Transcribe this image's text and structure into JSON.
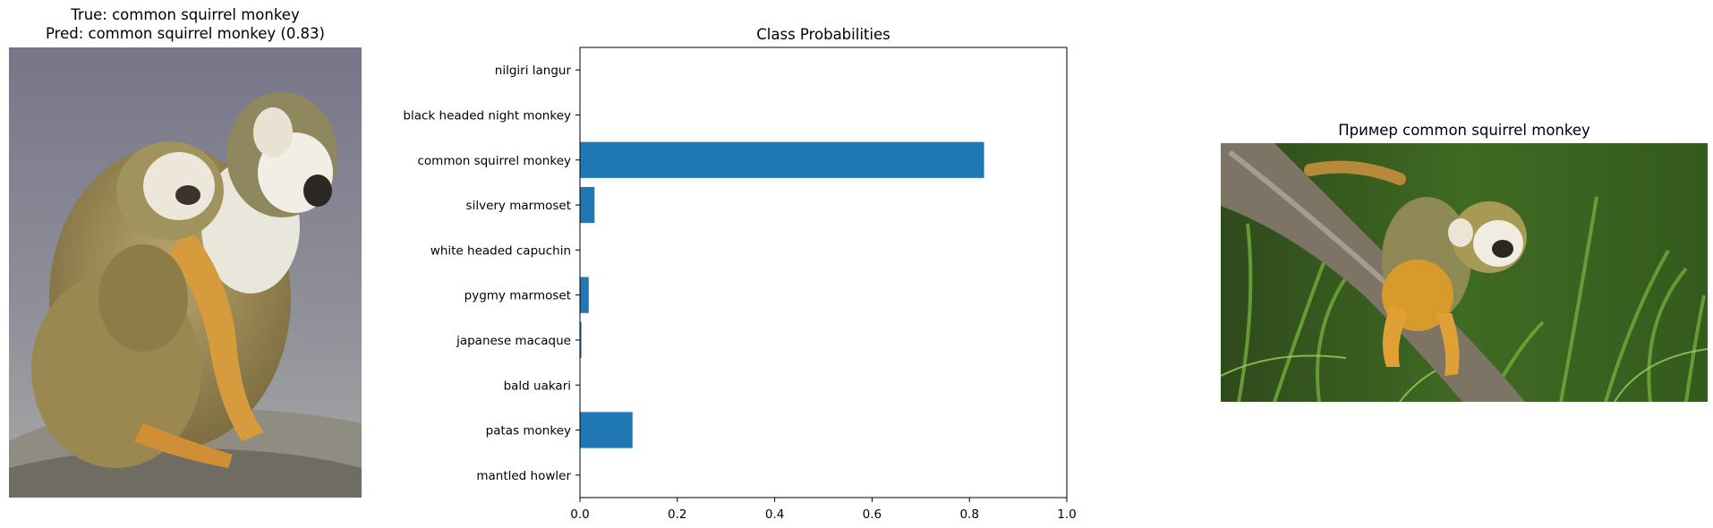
{
  "left_panel": {
    "title_line1": "True: common squirrel monkey",
    "title_line2": "Pred: common squirrel monkey (0.83)",
    "image_subject": "mother squirrel monkey carrying baby on a rock"
  },
  "right_panel": {
    "title": "Пример common squirrel monkey",
    "image_subject": "squirrel monkey on a branch in green grass"
  },
  "chart_data": {
    "type": "bar",
    "orientation": "horizontal",
    "title": "Class Probabilities",
    "categories": [
      "nilgiri langur",
      "black headed night monkey",
      "common squirrel monkey",
      "silvery marmoset",
      "white headed capuchin",
      "pygmy marmoset",
      "japanese macaque",
      "bald uakari",
      "patas monkey",
      "mantled howler"
    ],
    "values": [
      0.0,
      0.0,
      0.83,
      0.03,
      0.0,
      0.018,
      0.003,
      0.0,
      0.108,
      0.0
    ],
    "xlim": [
      0,
      1.0
    ],
    "xticks": [
      "0.0",
      "0.2",
      "0.4",
      "0.6",
      "0.8",
      "1.0"
    ],
    "xlabel": "",
    "ylabel": "",
    "bar_color": "#1f77b4",
    "grid": false
  }
}
